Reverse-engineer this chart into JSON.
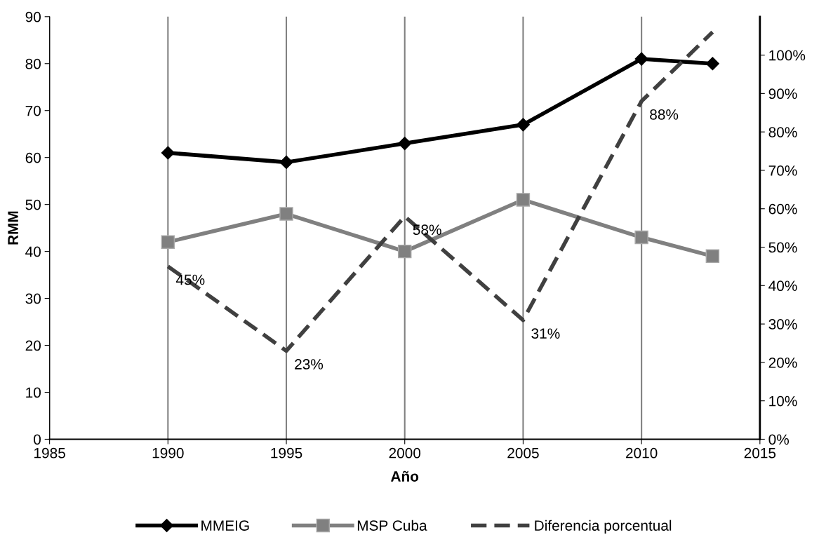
{
  "chart_data": {
    "type": "line",
    "xlabel": "Año",
    "ylabel": "RMM",
    "x": [
      1990,
      1995,
      2000,
      2005,
      2010,
      2013
    ],
    "series": [
      {
        "name": "MMEIG",
        "color": "#000000",
        "marker": "diamond",
        "values": [
          61,
          59,
          63,
          67,
          81,
          80
        ]
      },
      {
        "name": "MSP Cuba",
        "color": "#808080",
        "marker": "square",
        "values": [
          42,
          48,
          40,
          51,
          43,
          39
        ]
      },
      {
        "name": "Diferencia porcentual",
        "color": "#404040",
        "axis": "y2",
        "line_style": "dashed",
        "marker": "none",
        "values": [
          45,
          23,
          58,
          31,
          88,
          106
        ],
        "value_labels": [
          "45%",
          "23%",
          "58%",
          "31%",
          "88%",
          null
        ]
      }
    ],
    "xlim": [
      1985,
      2015
    ],
    "xticks": [
      1985,
      1990,
      1995,
      2000,
      2005,
      2010,
      2015
    ],
    "ylim": [
      0,
      90
    ],
    "yticks": [
      0,
      10,
      20,
      30,
      40,
      50,
      60,
      70,
      80,
      90
    ],
    "y2lim": [
      0,
      110
    ],
    "y2ticks": [
      {
        "value": 0,
        "label": "0%"
      },
      {
        "value": 10,
        "label": "10%"
      },
      {
        "value": 20,
        "label": "20%"
      },
      {
        "value": 30,
        "label": "30%"
      },
      {
        "value": 40,
        "label": "40%"
      },
      {
        "value": 50,
        "label": "50%"
      },
      {
        "value": 60,
        "label": "60%"
      },
      {
        "value": 70,
        "label": "70%"
      },
      {
        "value": 80,
        "label": "80%"
      },
      {
        "value": 90,
        "label": "90%"
      },
      {
        "value": 100,
        "label": "100%"
      }
    ],
    "grid": "x",
    "legend": "bottom"
  }
}
